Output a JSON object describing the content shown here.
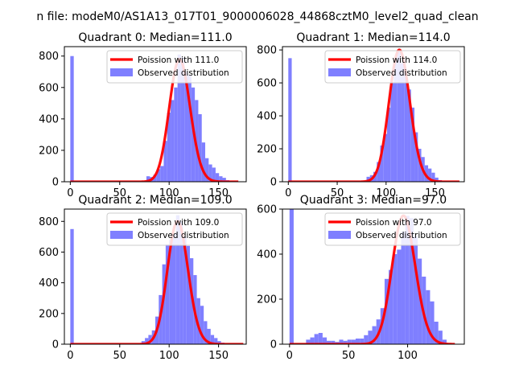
{
  "figure": {
    "title": "n file: modeM0/AS1A13_017T01_9000006028_44868cztM0_level2_quad_clean"
  },
  "colors": {
    "bars": "#7f7fff",
    "curve": "#ff0000",
    "axes": "#000000",
    "background": "#ffffff"
  },
  "chart_data": [
    {
      "type": "bar",
      "title": "Quadrant 0: Median=111.0",
      "legend": {
        "placement": "top-right",
        "entries": [
          "Poission with 111.0",
          "Observed distribution"
        ]
      },
      "xlim": [
        -6,
        178
      ],
      "ylim": [
        0,
        860
      ],
      "xticks": [
        0,
        50,
        100,
        150
      ],
      "yticks": [
        0,
        200,
        400,
        600,
        800
      ],
      "bin_width": 3.5,
      "bar_x": [
        0,
        77,
        80.5,
        84,
        87.5,
        91,
        94.5,
        98,
        101.5,
        105,
        108.5,
        112,
        115.5,
        119,
        122.5,
        126,
        129.5,
        133,
        136.5,
        140,
        143.5,
        147,
        150.5,
        154,
        157.5
      ],
      "bar_counts": [
        800,
        35,
        30,
        45,
        80,
        100,
        260,
        440,
        520,
        600,
        810,
        790,
        700,
        680,
        600,
        520,
        430,
        250,
        150,
        110,
        90,
        55,
        35,
        25,
        10
      ],
      "curve_mean": 111.0,
      "curve_peak": 780,
      "curve_range": [
        0,
        170
      ]
    },
    {
      "type": "bar",
      "title": "Quadrant 1: Median=114.0",
      "legend": {
        "placement": "top-right",
        "entries": [
          "Poission with 114.0",
          "Observed distribution"
        ]
      },
      "xlim": [
        -6,
        180
      ],
      "ylim": [
        0,
        820
      ],
      "xticks": [
        0,
        50,
        100,
        150
      ],
      "yticks": [
        0,
        200,
        400,
        600,
        800
      ],
      "bin_width": 3.5,
      "bar_x": [
        0,
        80,
        83.5,
        87,
        90.5,
        94,
        97.5,
        101,
        104.5,
        108,
        111.5,
        115,
        118.5,
        122,
        125.5,
        129,
        132.5,
        136,
        139.5,
        143,
        146.5,
        150,
        153.5
      ],
      "bar_counts": [
        750,
        30,
        40,
        60,
        120,
        220,
        290,
        450,
        600,
        750,
        790,
        720,
        650,
        560,
        450,
        300,
        200,
        150,
        100,
        80,
        55,
        25,
        10
      ],
      "curve_mean": 114.0,
      "curve_peak": 800,
      "curve_range": [
        0,
        175
      ]
    },
    {
      "type": "bar",
      "title": "Quadrant 2: Median=109.0",
      "legend": {
        "placement": "top-right",
        "entries": [
          "Poission with 109.0",
          "Observed distribution"
        ]
      },
      "xlim": [
        -6,
        178
      ],
      "ylim": [
        0,
        880
      ],
      "xticks": [
        0,
        50,
        100,
        150
      ],
      "yticks": [
        0,
        200,
        400,
        600,
        800
      ],
      "bin_width": 3.5,
      "bar_x": [
        0,
        72,
        75.5,
        79,
        82.5,
        86,
        89.5,
        93,
        96.5,
        100,
        103.5,
        107,
        110.5,
        114,
        117.5,
        121,
        124.5,
        128,
        131.5,
        135,
        138.5,
        142,
        145.5,
        149,
        152.5
      ],
      "bar_counts": [
        750,
        20,
        40,
        60,
        90,
        180,
        320,
        520,
        650,
        680,
        720,
        840,
        800,
        700,
        640,
        560,
        450,
        300,
        250,
        150,
        100,
        60,
        40,
        20,
        10
      ],
      "curve_mean": 109.0,
      "curve_peak": 800,
      "curve_range": [
        0,
        175
      ]
    },
    {
      "type": "bar",
      "title": "Quadrant 3: Median=97.0",
      "legend": {
        "placement": "top-right",
        "entries": [
          "Poission with 97.0",
          "Observed distribution"
        ]
      },
      "xlim": [
        -6,
        148
      ],
      "ylim": [
        0,
        600
      ],
      "xticks": [
        0,
        50,
        100
      ],
      "yticks": [
        0,
        200,
        400,
        600
      ],
      "bin_width": 3.5,
      "bar_x": [
        0,
        14,
        17.5,
        21,
        24.5,
        28,
        31.5,
        35,
        38.5,
        42,
        45.5,
        49,
        52.5,
        56,
        59.5,
        63,
        66.5,
        70,
        73.5,
        77,
        80.5,
        84,
        87.5,
        91,
        94.5,
        98,
        101.5,
        105,
        108.5,
        112,
        115.5,
        119,
        122.5,
        126,
        129.5
      ],
      "bar_counts": [
        600,
        20,
        30,
        45,
        50,
        30,
        15,
        15,
        10,
        20,
        15,
        20,
        20,
        25,
        25,
        40,
        60,
        80,
        110,
        160,
        290,
        330,
        400,
        420,
        500,
        570,
        560,
        480,
        380,
        300,
        240,
        190,
        100,
        60,
        20
      ],
      "curve_mean": 97.0,
      "curve_peak": 570,
      "curve_range": [
        0,
        140
      ]
    }
  ]
}
